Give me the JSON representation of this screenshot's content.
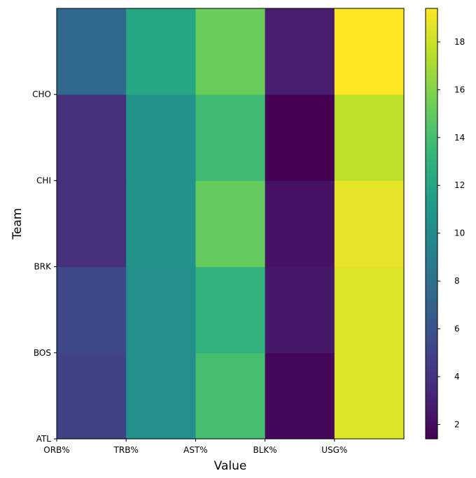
{
  "chart_data": {
    "type": "heatmap",
    "title": "",
    "xlabel": "Value",
    "ylabel": "Team",
    "x_categories": [
      "ORB%",
      "TRB%",
      "AST%",
      "BLK%",
      "USG%"
    ],
    "y_tick_labels": [
      "ATL",
      "BOS",
      "BRK",
      "CHI",
      "CHO"
    ],
    "rows_bottom_to_top": [
      [
        5.0,
        10.4,
        14.0,
        1.7,
        18.5
      ],
      [
        5.3,
        10.4,
        13.0,
        2.6,
        18.5
      ],
      [
        3.9,
        10.6,
        15.1,
        2.3,
        18.8
      ],
      [
        3.9,
        10.6,
        13.7,
        1.4,
        17.6
      ],
      [
        7.4,
        12.0,
        15.2,
        2.9,
        19.4
      ]
    ],
    "colorbar": {
      "colormap": "viridis",
      "range": [
        1.4,
        19.4
      ],
      "ticks": [
        2,
        4,
        6,
        8,
        10,
        12,
        14,
        16,
        18
      ]
    }
  }
}
